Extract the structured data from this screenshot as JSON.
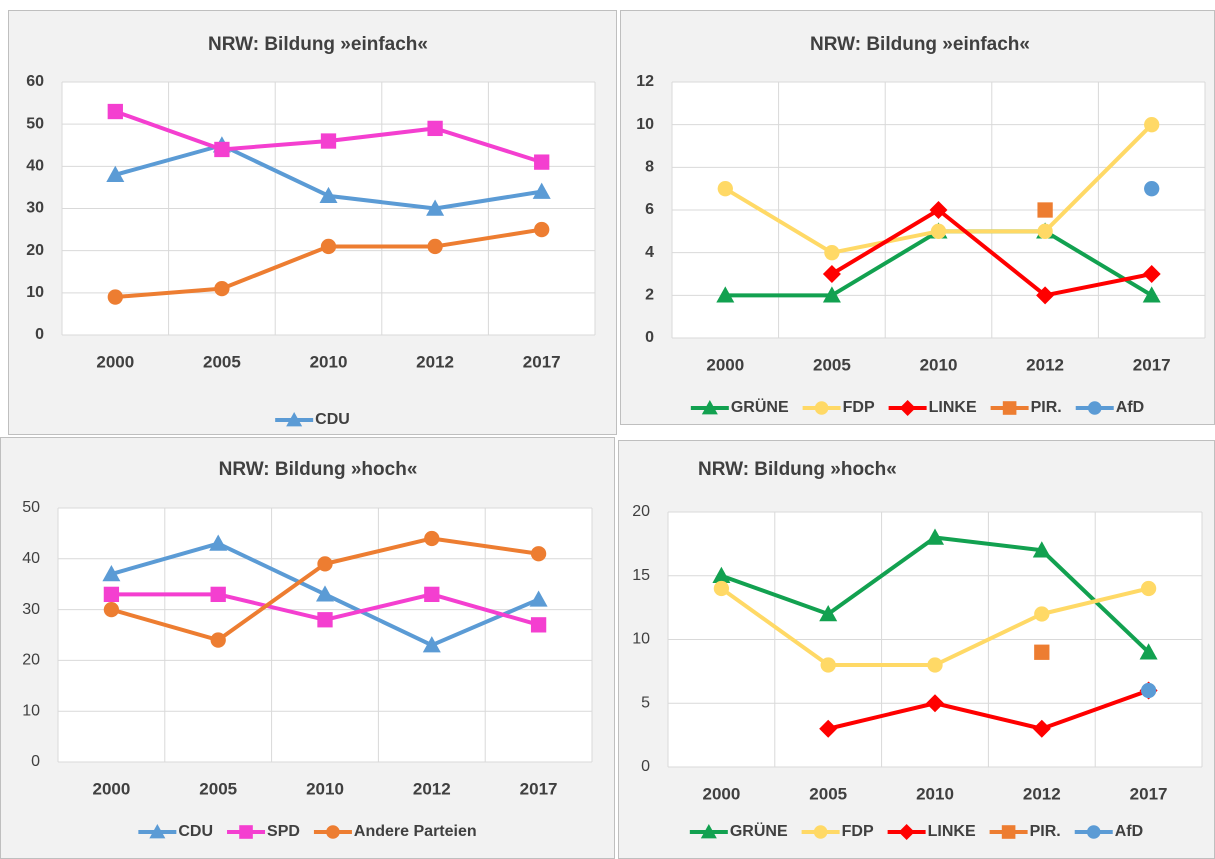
{
  "chart_data": [
    {
      "type": "line",
      "title": "NRW: Bildung »einfach«",
      "categories": [
        "2000",
        "2005",
        "2010",
        "2012",
        "2017"
      ],
      "ylim": [
        0,
        60
      ],
      "yticks": [
        0,
        10,
        20,
        30,
        40,
        50,
        60
      ],
      "grid": true,
      "series": [
        {
          "name": "CDU",
          "color": "#5b9bd5",
          "marker": "triangle",
          "values": [
            38,
            45,
            33,
            30,
            34
          ]
        },
        {
          "color": "#f43fd0",
          "marker": "square",
          "values": [
            53,
            44,
            46,
            49,
            41
          ]
        },
        {
          "color": "#ed7d31",
          "marker": "circle",
          "values": [
            9,
            11,
            21,
            21,
            25
          ]
        }
      ]
    },
    {
      "type": "line",
      "title": "NRW: Bildung »einfach«",
      "categories": [
        "2000",
        "2005",
        "2010",
        "2012",
        "2017"
      ],
      "ylim": [
        0,
        12
      ],
      "yticks": [
        0,
        2,
        4,
        6,
        8,
        10,
        12
      ],
      "grid": true,
      "series": [
        {
          "name": "GRÜNE",
          "color": "#12a150",
          "marker": "triangle",
          "values": [
            2,
            2,
            5,
            5,
            2
          ]
        },
        {
          "name": "FDP",
          "color": "#ffd966",
          "marker": "circle",
          "values": [
            7,
            4,
            5,
            5,
            10
          ]
        },
        {
          "name": "LINKE",
          "color": "#ff0000",
          "marker": "diamond",
          "values": [
            null,
            3,
            6,
            2,
            3
          ]
        },
        {
          "name": "PIR.",
          "color": "#ed7d31",
          "marker": "square",
          "values": [
            null,
            null,
            null,
            6,
            null
          ]
        },
        {
          "name": "AfD",
          "color": "#5b9bd5",
          "marker": "circle",
          "values": [
            null,
            null,
            null,
            null,
            7
          ]
        }
      ]
    },
    {
      "type": "line",
      "title": "NRW: Bildung »hoch«",
      "categories": [
        "2000",
        "2005",
        "2010",
        "2012",
        "2017"
      ],
      "ylim": [
        0,
        50
      ],
      "yticks": [
        0,
        10,
        20,
        30,
        40,
        50
      ],
      "grid": true,
      "series": [
        {
          "name": "CDU",
          "color": "#5b9bd5",
          "marker": "triangle",
          "values": [
            37,
            43,
            33,
            23,
            32
          ]
        },
        {
          "name": "SPD",
          "color": "#f43fd0",
          "marker": "square",
          "values": [
            33,
            33,
            28,
            33,
            27
          ]
        },
        {
          "name": "Andere Parteien",
          "color": "#ed7d31",
          "marker": "circle",
          "values": [
            30,
            24,
            39,
            44,
            41
          ]
        }
      ]
    },
    {
      "type": "line",
      "title": "NRW: Bildung »hoch«",
      "categories": [
        "2000",
        "2005",
        "2010",
        "2012",
        "2017"
      ],
      "ylim": [
        0,
        20
      ],
      "yticks": [
        0,
        5,
        10,
        15,
        20
      ],
      "grid": true,
      "series": [
        {
          "name": "GRÜNE",
          "color": "#12a150",
          "marker": "triangle",
          "values": [
            15,
            12,
            18,
            17,
            9
          ]
        },
        {
          "name": "FDP",
          "color": "#ffd966",
          "marker": "circle",
          "values": [
            14,
            8,
            8,
            12,
            14
          ]
        },
        {
          "name": "LINKE",
          "color": "#ff0000",
          "marker": "diamond",
          "values": [
            null,
            3,
            5,
            3,
            6
          ]
        },
        {
          "name": "PIR.",
          "color": "#ed7d31",
          "marker": "square",
          "values": [
            null,
            null,
            null,
            9,
            null
          ]
        },
        {
          "name": "AfD",
          "color": "#5b9bd5",
          "marker": "circle",
          "values": [
            null,
            null,
            null,
            null,
            6
          ]
        }
      ]
    }
  ]
}
